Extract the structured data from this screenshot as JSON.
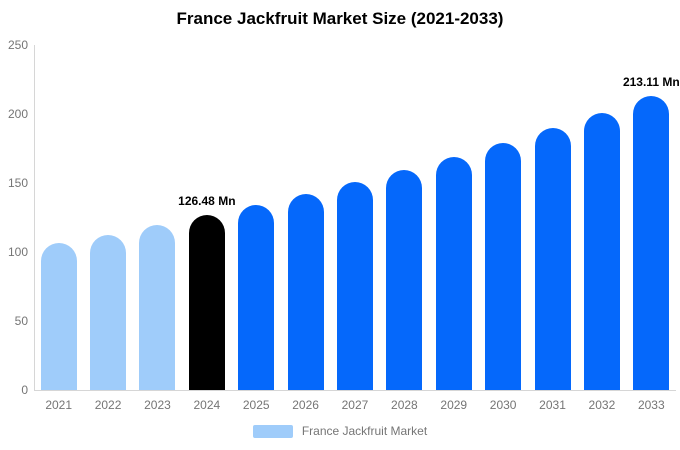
{
  "title": "France Jackfruit Market Size (2021-2033)",
  "colors": {
    "past_bar": "#9fccfa",
    "current_bar": "#000000",
    "forecast_bar": "#0568fb",
    "axis": "#d6d6d6",
    "tick_text": "#757575",
    "annotation_text": "#000000"
  },
  "legend": {
    "label": "France Jackfruit Market",
    "swatch_color": "#9fccfa"
  },
  "chart_data": {
    "type": "bar",
    "title": "France Jackfruit Market Size (2021-2033)",
    "unit": "Mn",
    "categories": [
      "2021",
      "2022",
      "2023",
      "2024",
      "2025",
      "2026",
      "2027",
      "2028",
      "2029",
      "2030",
      "2031",
      "2032",
      "2033"
    ],
    "values": [
      106.35,
      112.69,
      119.37,
      126.48,
      134.02,
      142.01,
      150.47,
      159.44,
      168.94,
      179.01,
      189.68,
      201.02,
      213.11
    ],
    "bar_roles": [
      "past",
      "past",
      "past",
      "current",
      "forecast",
      "forecast",
      "forecast",
      "forecast",
      "forecast",
      "forecast",
      "forecast",
      "forecast",
      "forecast"
    ],
    "annotations": [
      {
        "category": "2024",
        "text": "126.48 Mn"
      },
      {
        "category": "2033",
        "text": "213.11 Mn"
      }
    ],
    "xlabel": "",
    "ylabel": "",
    "ylim": [
      0,
      250
    ],
    "yticks": [
      0,
      50,
      100,
      150,
      200,
      250
    ],
    "grid": false,
    "legend_entries": [
      "France Jackfruit Market"
    ],
    "legend_position": "bottom"
  }
}
